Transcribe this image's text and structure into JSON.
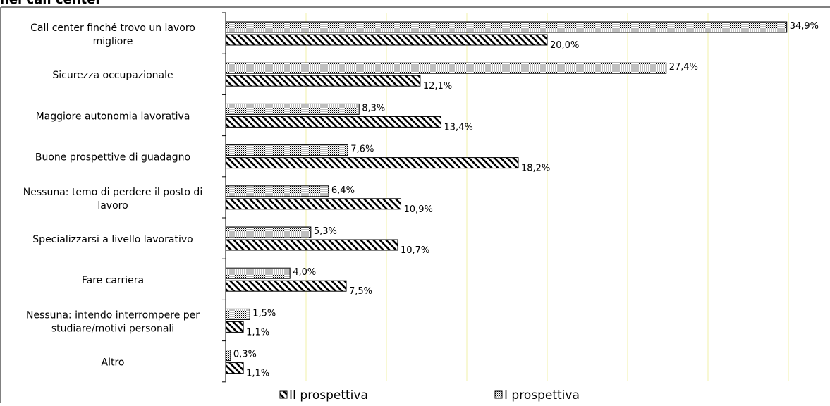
{
  "title": "nel call center",
  "chart_data": {
    "type": "bar",
    "orientation": "horizontal",
    "categories": [
      "Call center finché trovo un lavoro migliore",
      "Sicurezza occupazionale",
      "Maggiore autonomia lavorativa",
      "Buone prospettive di guadagno",
      "Nessuna: temo di perdere il posto di lavoro",
      "Specializzarsi a livello lavorativo",
      "Fare carriera",
      "Nessuna: intendo interrompere per studiare/motivi personali",
      "Altro"
    ],
    "category_lines": [
      [
        "Call center finché trovo un lavoro",
        "migliore"
      ],
      [
        "Sicurezza occupazionale"
      ],
      [
        "Maggiore autonomia lavorativa"
      ],
      [
        "Buone prospettive di guadagno"
      ],
      [
        "Nessuna: temo di perdere il posto di",
        "lavoro"
      ],
      [
        "Specializzarsi a livello lavorativo"
      ],
      [
        "Fare carriera"
      ],
      [
        "Nessuna: intendo interrompere per",
        "studiare/motivi personali"
      ],
      [
        "Altro"
      ]
    ],
    "series": [
      {
        "name": "I prospettiva",
        "pattern": "dotted",
        "values": [
          34.9,
          27.4,
          8.3,
          7.6,
          6.4,
          5.3,
          4.0,
          1.5,
          0.3
        ],
        "labels": [
          "34,9%",
          "27,4%",
          "8,3%",
          "7,6%",
          "6,4%",
          "5,3%",
          "4,0%",
          "1,5%",
          "0,3%"
        ]
      },
      {
        "name": "II prospettiva",
        "pattern": "diagonal",
        "values": [
          20.0,
          12.1,
          13.4,
          18.2,
          10.9,
          10.7,
          7.5,
          1.1,
          1.1
        ],
        "labels": [
          "20,0%",
          "12,1%",
          "13,4%",
          "18,2%",
          "10,9%",
          "10,7%",
          "7,5%",
          "1,1%",
          "1,1%"
        ]
      }
    ],
    "legend": [
      "II prospettiva",
      "I prospettiva"
    ],
    "legend_position": "bottom",
    "xlim": [
      0,
      35
    ],
    "grid": "vertical",
    "colors": {
      "bar_stroke": "#000000",
      "grid": "#f0f0a8"
    }
  }
}
